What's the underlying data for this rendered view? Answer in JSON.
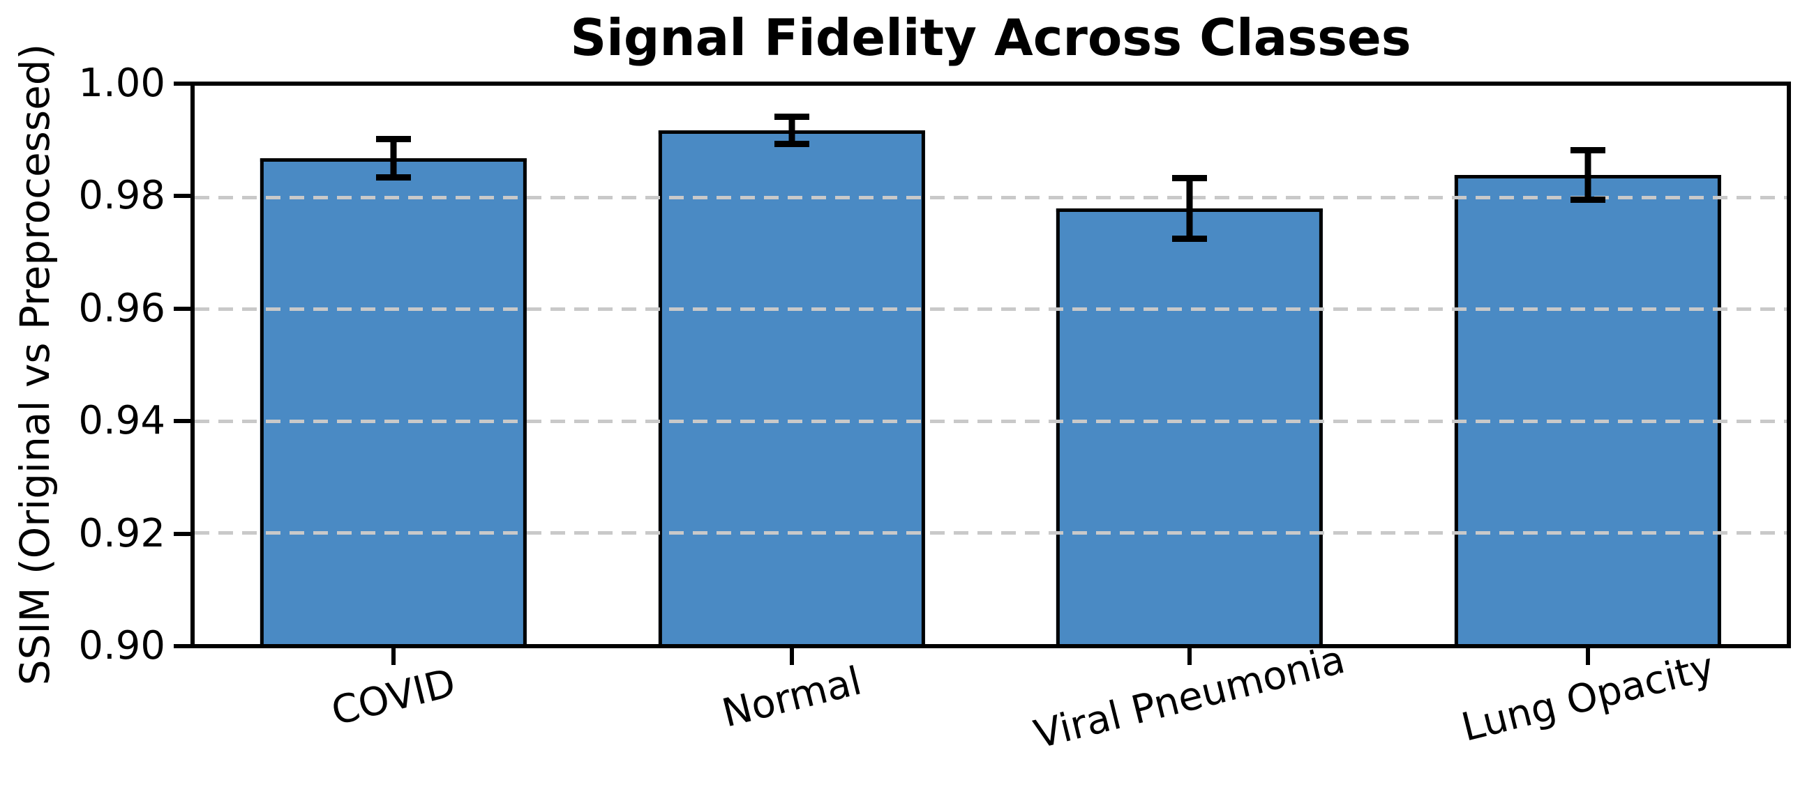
{
  "chart_data": {
    "type": "bar",
    "title": "Signal Fidelity Across Classes",
    "xlabel": "",
    "ylabel": "SSIM (Original vs Preprocessed)",
    "categories": [
      "COVID",
      "Normal",
      "Viral Pneumonia",
      "Lung Opacity"
    ],
    "values": [
      0.987,
      0.992,
      0.978,
      0.984
    ],
    "errors": [
      0.004,
      0.003,
      0.006,
      0.005
    ],
    "error_ranges": [
      [
        0.983,
        0.991
      ],
      [
        0.989,
        0.995
      ],
      [
        0.972,
        0.984
      ],
      [
        0.979,
        0.989
      ]
    ],
    "ylim": [
      0.9,
      1.0
    ],
    "yticks": [
      1.0,
      0.98,
      0.96,
      0.94,
      0.92,
      0.9
    ],
    "ytick_labels": [
      "1.00",
      "0.98",
      "0.96",
      "0.94",
      "0.92",
      "0.90"
    ],
    "grid_values": [
      0.98,
      0.96,
      0.94,
      0.92
    ],
    "grid_style": "horizontal dashed, drawn over bars",
    "legend": "none",
    "x_tick_label_rotation_deg": 14,
    "colors": {
      "bar_fill": "#4a8ac4",
      "bar_edge": "#000000",
      "error_bar": "#000000",
      "grid_line": "#c9c9c9",
      "text": "#000000",
      "background": "#ffffff"
    }
  }
}
